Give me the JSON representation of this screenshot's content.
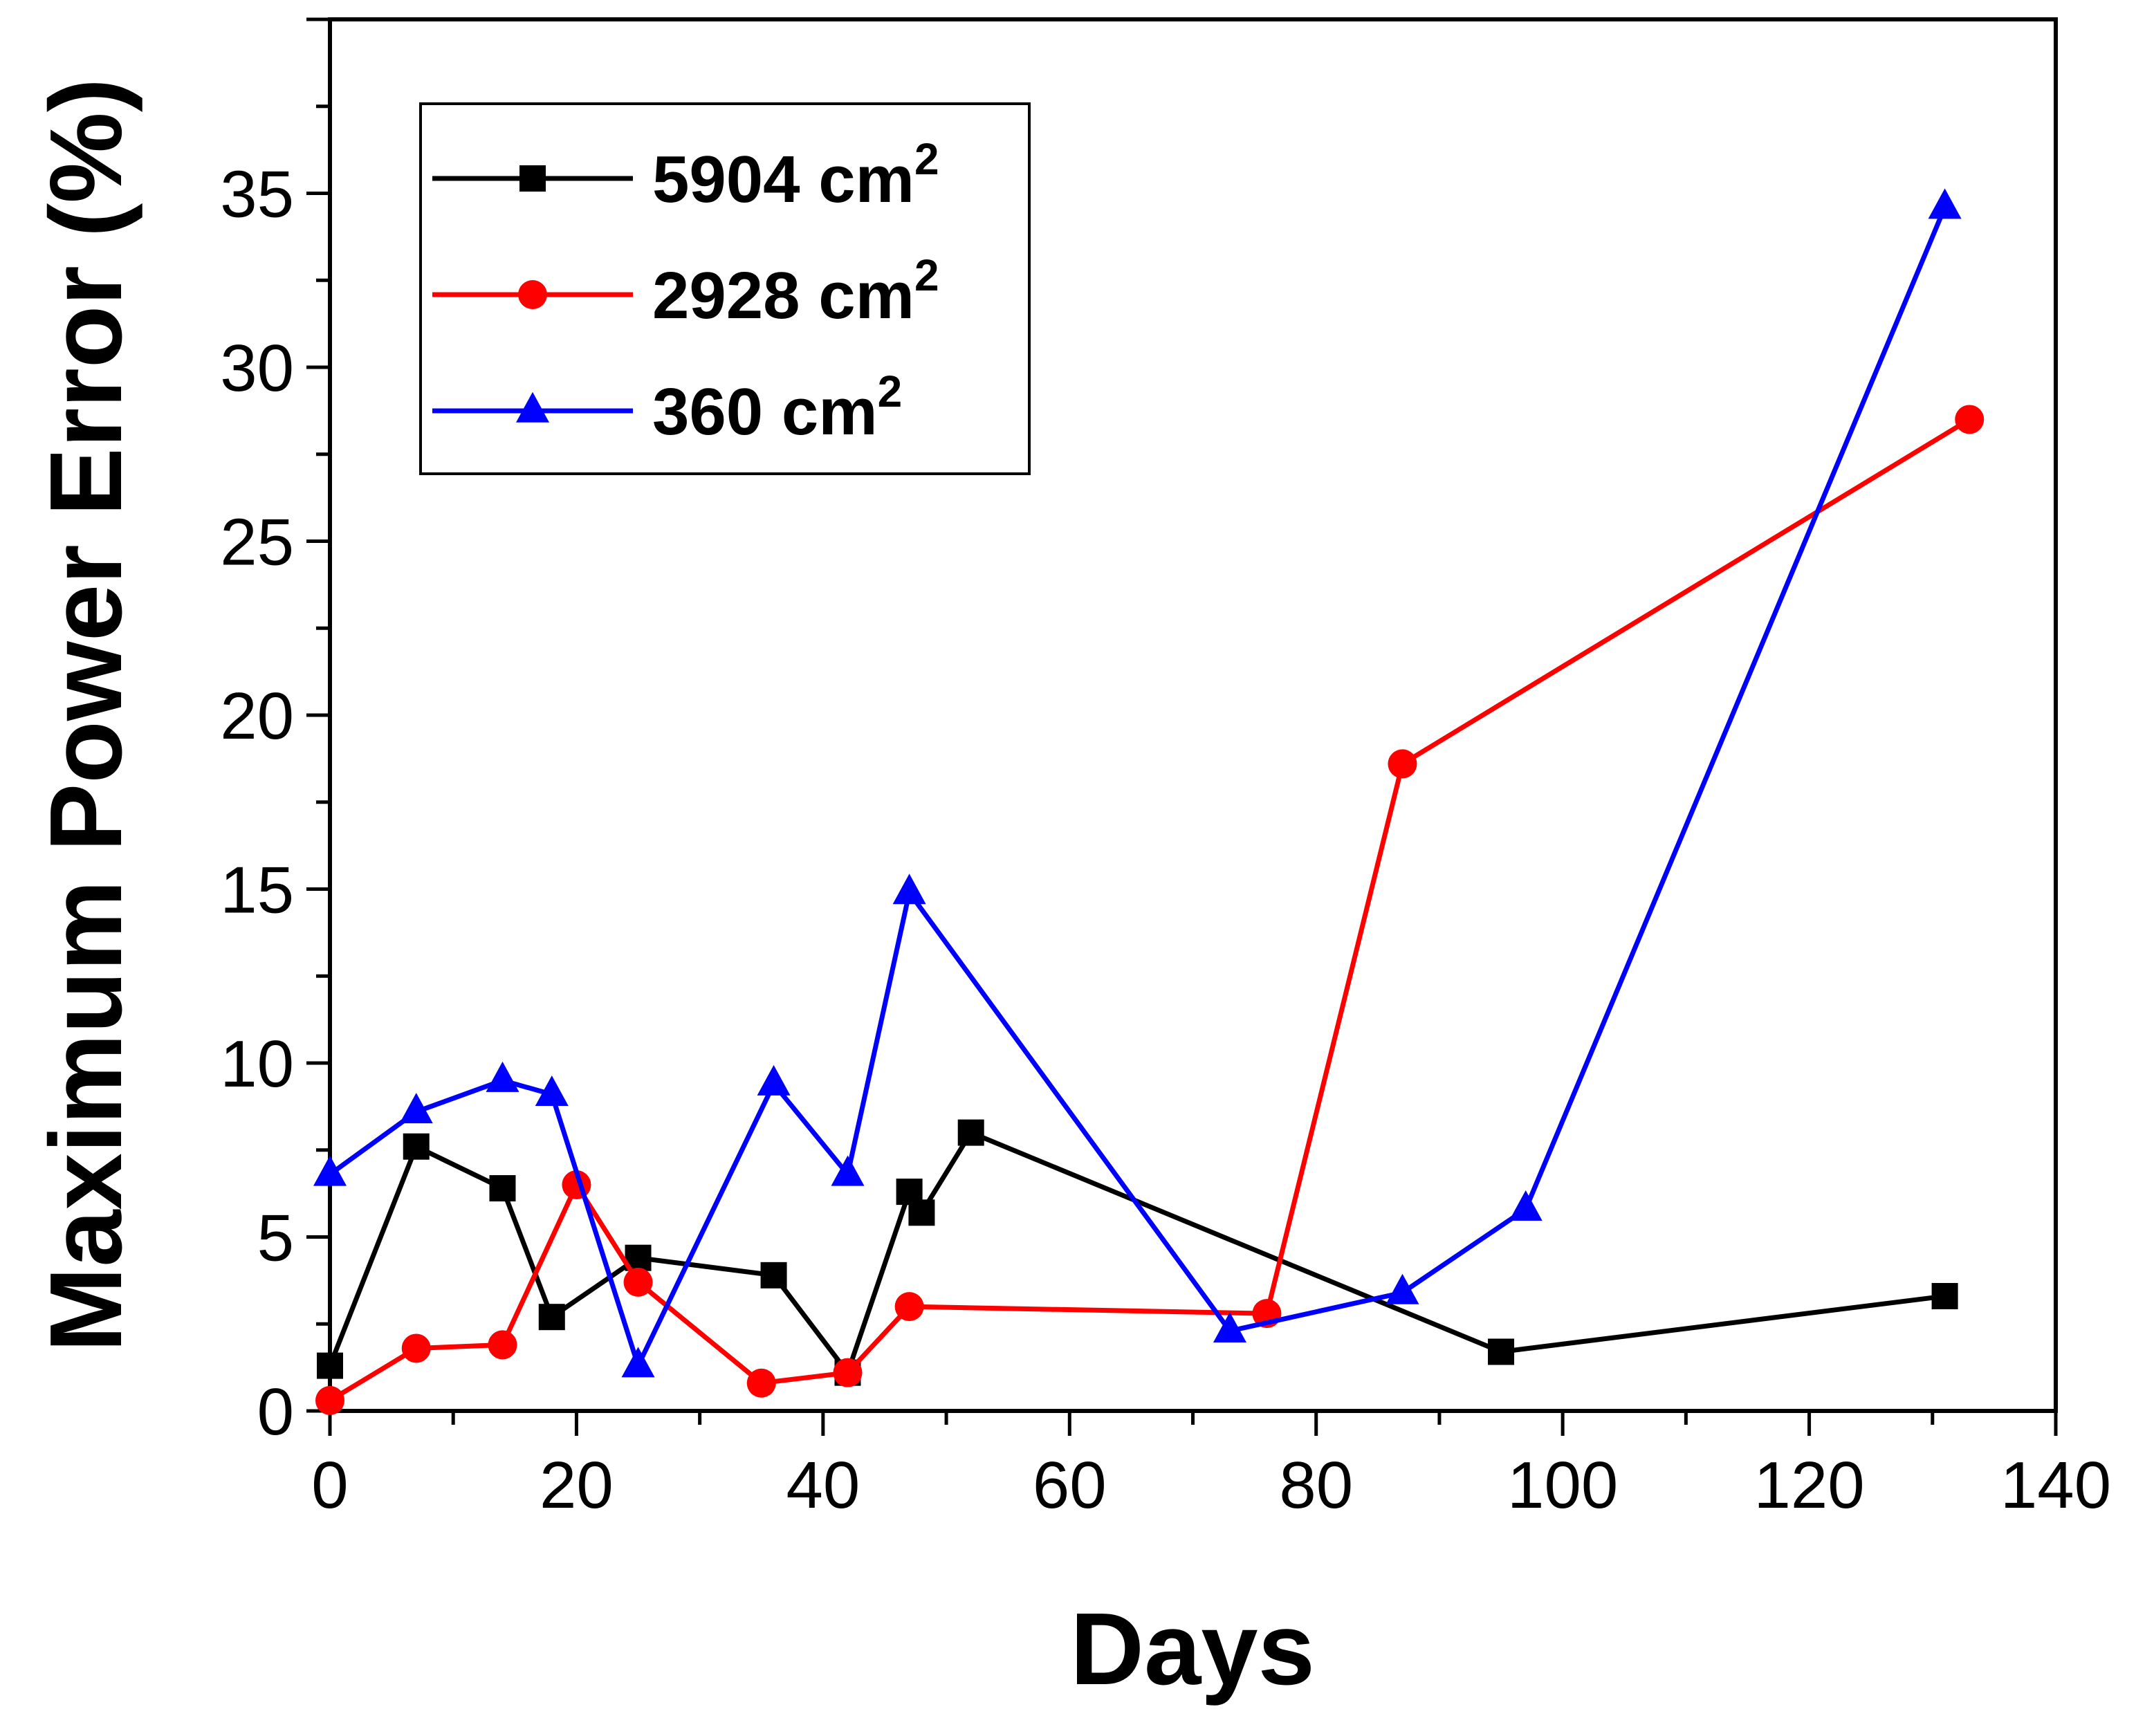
{
  "chart_data": {
    "type": "line",
    "title": "",
    "xlabel": "Days",
    "ylabel": "Maximum Power Error (%)",
    "xlim": [
      0,
      140
    ],
    "ylim": [
      0,
      40
    ],
    "xticks": [
      0,
      20,
      40,
      60,
      80,
      100,
      120,
      140
    ],
    "yticks": [
      0,
      5,
      10,
      15,
      20,
      25,
      30,
      35
    ],
    "grid": false,
    "legend_position": "top-left",
    "series": [
      {
        "name": "5904 cm",
        "superscript": "2",
        "color": "#000000",
        "marker": "square",
        "x": [
          0,
          7,
          14,
          18,
          25,
          36,
          42,
          47,
          48,
          52,
          95,
          131
        ],
        "y": [
          1.3,
          7.6,
          6.4,
          2.7,
          4.4,
          3.9,
          1.1,
          6.3,
          5.7,
          8.0,
          1.7,
          3.3
        ]
      },
      {
        "name": "2928 cm",
        "superscript": "2",
        "color": "#ff0000",
        "marker": "circle",
        "x": [
          0,
          7,
          14,
          20,
          25,
          35,
          42,
          47,
          76,
          87,
          133
        ],
        "y": [
          0.3,
          1.8,
          1.9,
          6.5,
          3.7,
          0.8,
          1.1,
          3.0,
          2.8,
          18.6,
          28.5
        ]
      },
      {
        "name": "360 cm",
        "superscript": "2",
        "color": "#0000ff",
        "marker": "triangle",
        "x": [
          0,
          7,
          14,
          18,
          25,
          36,
          42,
          47,
          73,
          87,
          97,
          131
        ],
        "y": [
          6.8,
          8.6,
          9.5,
          9.1,
          1.3,
          9.4,
          6.8,
          14.9,
          2.3,
          3.4,
          5.8,
          34.6
        ]
      }
    ]
  }
}
